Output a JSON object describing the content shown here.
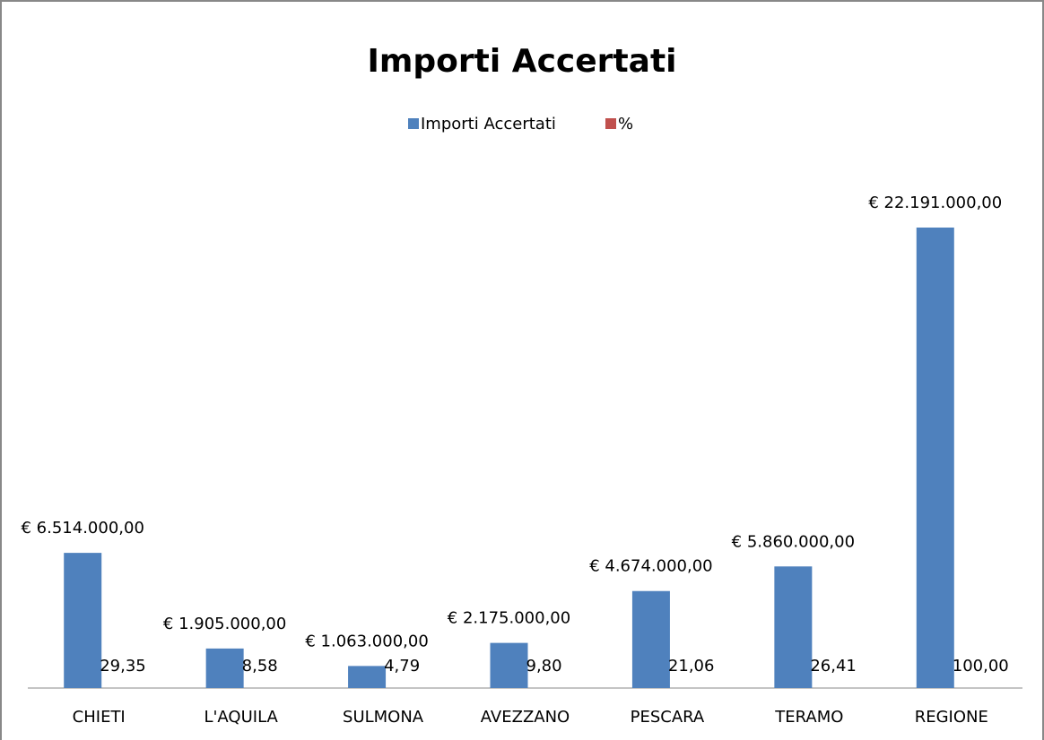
{
  "chart_data": {
    "type": "bar",
    "title": "Importi Accertati",
    "categories": [
      "CHIETI",
      "L'AQUILA",
      "SULMONA",
      "AVEZZANO",
      "PESCARA",
      "TERAMO",
      "REGIONE"
    ],
    "series": [
      {
        "name": "Importi  Accertati",
        "color": "#4f81bd",
        "values": [
          6514000,
          1905000,
          1063000,
          2175000,
          4674000,
          5860000,
          22191000
        ],
        "value_labels": [
          "€ 6.514.000,00",
          "€ 1.905.000,00",
          "€ 1.063.000,00",
          "€ 2.175.000,00",
          "€ 4.674.000,00",
          "€ 5.860.000,00",
          "€ 22.191.000,00"
        ]
      },
      {
        "name": "%",
        "color": "#c0504d",
        "values": [
          29.35,
          8.58,
          4.79,
          9.8,
          21.06,
          26.41,
          100.0
        ],
        "value_labels": [
          "29,35",
          "8,58",
          "4,79",
          "9,80",
          "21,06",
          "26,41",
          "100,00"
        ]
      }
    ],
    "legend": "top"
  }
}
